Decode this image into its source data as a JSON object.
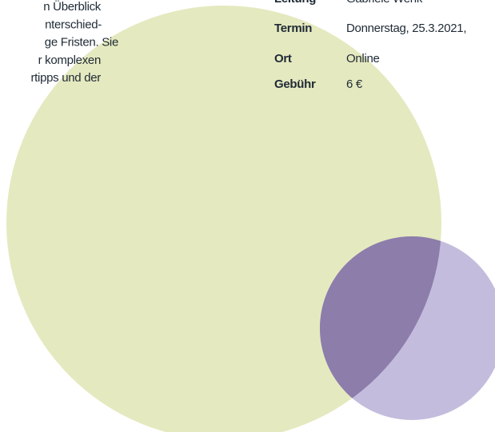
{
  "intro": {
    "lines": [
      "n Überblick",
      "nterschied-",
      "ge Fristen. Sie",
      "r komplexen",
      "rtipps und der"
    ]
  },
  "details": {
    "rows": [
      {
        "label": "Leitung",
        "value": "Gabriele Wenk"
      },
      {
        "label": "Termin",
        "value": "Donnerstag, 25.3.2021,"
      },
      {
        "label": "Ort",
        "value": "Online"
      },
      {
        "label": "Gebühr",
        "value": "6 €"
      }
    ]
  }
}
